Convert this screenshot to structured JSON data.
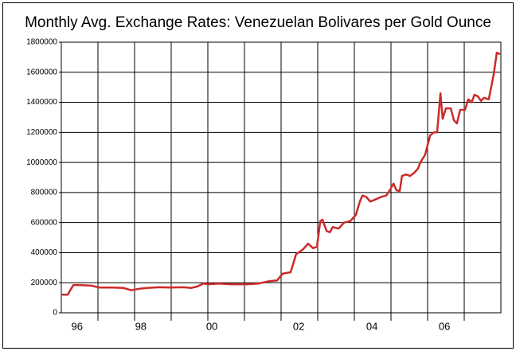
{
  "chart_data": {
    "type": "line",
    "title": "Monthly Avg. Exchange Rates: Venezuelan Bolivares per Gold Ounce",
    "x": [
      1996.0,
      1996.17,
      1996.33,
      1996.5,
      1996.83,
      1997.04,
      1997.37,
      1997.7,
      1997.91,
      1998.13,
      1998.35,
      1998.67,
      1999.0,
      1999.33,
      1999.54,
      1999.72,
      1999.87,
      2000.02,
      2000.3,
      2000.63,
      2001.07,
      2001.39,
      2001.67,
      2001.89,
      2002.04,
      2002.26,
      2002.41,
      2002.59,
      2002.74,
      2002.87,
      2002.98,
      2003.07,
      2003.13,
      2003.24,
      2003.33,
      2003.41,
      2003.57,
      2003.72,
      2003.89,
      2004.04,
      2004.15,
      2004.22,
      2004.33,
      2004.43,
      2004.54,
      2004.72,
      2004.87,
      2004.98,
      2005.07,
      2005.15,
      2005.24,
      2005.3,
      2005.41,
      2005.52,
      2005.63,
      2005.74,
      2005.8,
      2005.93,
      2006.07,
      2006.17,
      2006.26,
      2006.35,
      2006.41,
      2006.5,
      2006.63,
      2006.72,
      2006.8,
      2006.89,
      2007.02,
      2007.11,
      2007.2,
      2007.28,
      2007.37,
      2007.46,
      2007.54,
      2007.67,
      2007.8,
      2007.89,
      2007.98
    ],
    "series": [
      {
        "color": "#cc2a2a",
        "values": [
          120000,
          120000,
          185000,
          185000,
          180000,
          168000,
          168000,
          165000,
          150000,
          160000,
          165000,
          170000,
          168000,
          170000,
          165000,
          175000,
          195000,
          190000,
          195000,
          190000,
          190000,
          195000,
          210000,
          215000,
          260000,
          270000,
          390000,
          420000,
          460000,
          430000,
          440000,
          610000,
          620000,
          545000,
          535000,
          570000,
          560000,
          600000,
          610000,
          650000,
          740000,
          780000,
          770000,
          740000,
          750000,
          770000,
          780000,
          820000,
          860000,
          815000,
          810000,
          910000,
          920000,
          910000,
          930000,
          960000,
          1000000,
          1050000,
          1180000,
          1200000,
          1200000,
          1460000,
          1290000,
          1360000,
          1360000,
          1280000,
          1260000,
          1350000,
          1350000,
          1420000,
          1400000,
          1450000,
          1440000,
          1410000,
          1430000,
          1420000,
          1580000,
          1730000,
          1720000
        ]
      }
    ],
    "xlim": [
      1996,
      2008
    ],
    "xticks": [
      {
        "value": 1996.43,
        "label": "96"
      },
      {
        "value": 1998.17,
        "label": "98"
      },
      {
        "value": 2000.11,
        "label": "00"
      },
      {
        "value": 2002.48,
        "label": "02"
      },
      {
        "value": 2004.48,
        "label": "04"
      },
      {
        "value": 2006.46,
        "label": "06"
      }
    ],
    "xgrid": [
      1997,
      1998,
      1999,
      2000,
      2001,
      2002,
      2003,
      2004,
      2005,
      2006,
      2007
    ],
    "ylim": [
      0,
      1800000
    ],
    "yticks": [
      0,
      200000,
      400000,
      600000,
      800000,
      1000000,
      1200000,
      1400000,
      1600000,
      1800000
    ],
    "grid": true
  }
}
